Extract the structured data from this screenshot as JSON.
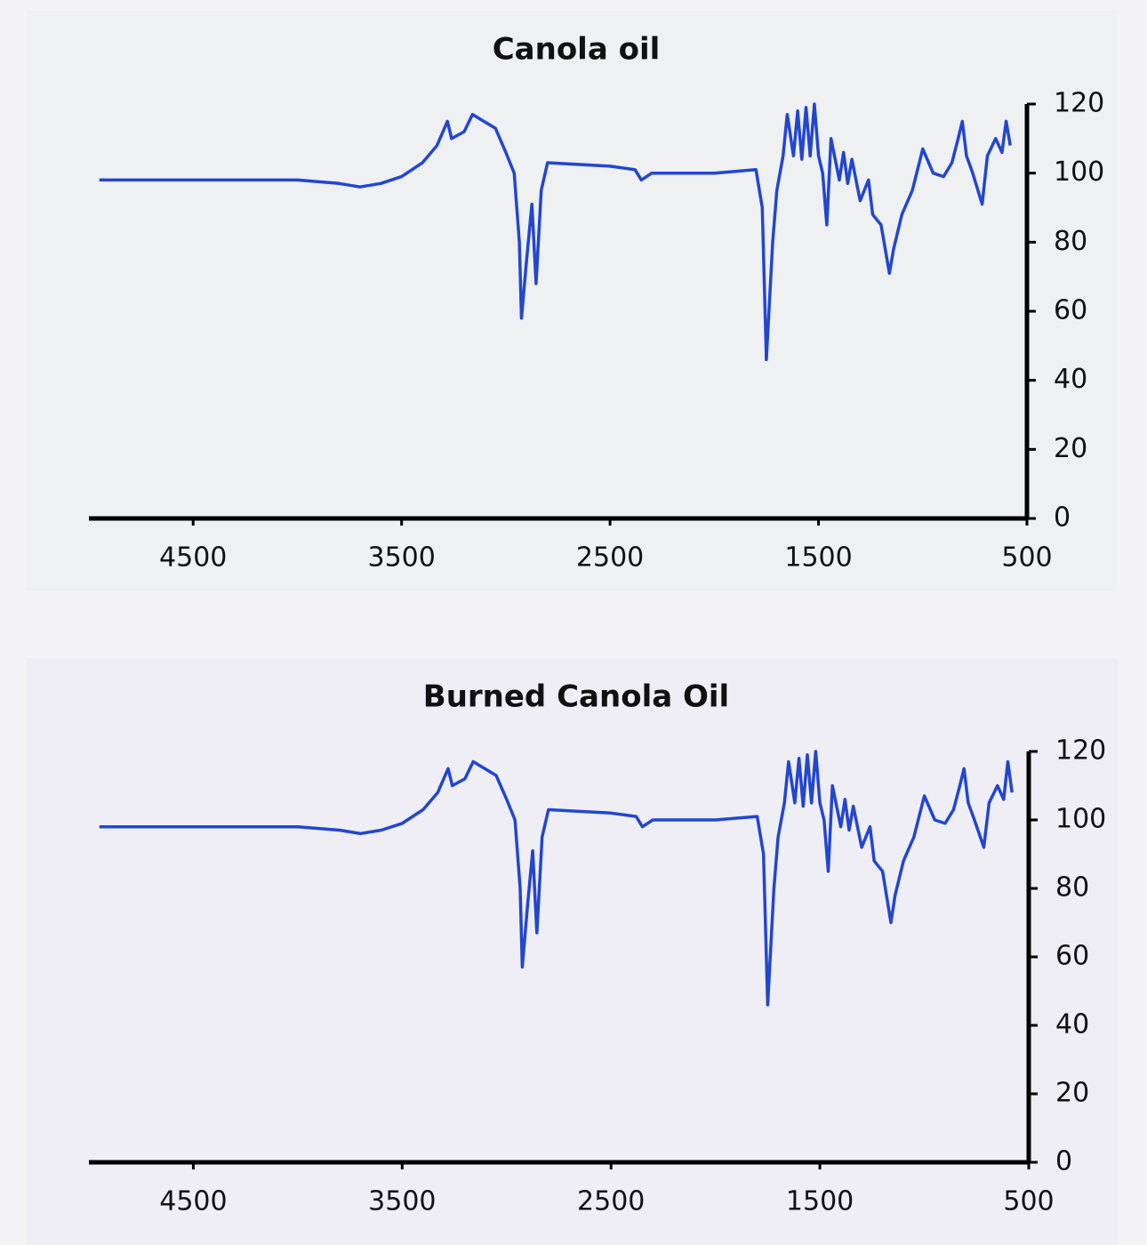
{
  "chart_data": [
    {
      "type": "line",
      "title": "Canola oil",
      "x": [
        4950,
        4500,
        4000,
        3800,
        3700,
        3600,
        3500,
        3400,
        3330,
        3280,
        3260,
        3200,
        3160,
        3050,
        3000,
        2960,
        2935,
        2925,
        2900,
        2875,
        2855,
        2830,
        2800,
        2500,
        2380,
        2350,
        2300,
        2000,
        1800,
        1770,
        1750,
        1720,
        1700,
        1670,
        1650,
        1620,
        1600,
        1580,
        1560,
        1540,
        1520,
        1500,
        1480,
        1460,
        1440,
        1400,
        1380,
        1360,
        1340,
        1300,
        1260,
        1240,
        1200,
        1160,
        1140,
        1100,
        1050,
        1000,
        950,
        900,
        860,
        830,
        810,
        790,
        760,
        715,
        690,
        650,
        620,
        600,
        580
      ],
      "series": [
        {
          "color": "#2346d0",
          "values": [
            98,
            98,
            98,
            97,
            96,
            97,
            99,
            103,
            108,
            115,
            110,
            112,
            117,
            113,
            106,
            100,
            80,
            58,
            75,
            91,
            68,
            95,
            103,
            102,
            101,
            98,
            100,
            100,
            101,
            90,
            46,
            80,
            95,
            105,
            117,
            105,
            118,
            104,
            119,
            105,
            120,
            105,
            100,
            85,
            110,
            98,
            106,
            97,
            104,
            92,
            98,
            88,
            85,
            71,
            78,
            88,
            95,
            107,
            100,
            99,
            103,
            110,
            115,
            105,
            100,
            91,
            105,
            110,
            106,
            115,
            108
          ]
        }
      ],
      "xlim": [
        5000,
        500
      ],
      "xticks": [
        4500,
        3500,
        2500,
        1500,
        500
      ],
      "ylim": [
        0,
        120
      ],
      "yticks": [
        0,
        20,
        40,
        60,
        80,
        100,
        120
      ]
    },
    {
      "type": "line",
      "title": "Burned Canola Oil",
      "x": [
        4950,
        4500,
        4000,
        3800,
        3700,
        3600,
        3500,
        3400,
        3330,
        3280,
        3260,
        3200,
        3160,
        3050,
        3000,
        2960,
        2935,
        2925,
        2900,
        2875,
        2855,
        2830,
        2800,
        2500,
        2380,
        2350,
        2300,
        2000,
        1800,
        1770,
        1750,
        1720,
        1700,
        1670,
        1650,
        1620,
        1600,
        1580,
        1560,
        1540,
        1520,
        1500,
        1480,
        1460,
        1440,
        1400,
        1380,
        1360,
        1340,
        1300,
        1260,
        1240,
        1200,
        1160,
        1140,
        1100,
        1050,
        1000,
        950,
        900,
        860,
        830,
        810,
        790,
        760,
        715,
        690,
        650,
        620,
        600,
        580
      ],
      "series": [
        {
          "color": "#2346d0",
          "values": [
            98,
            98,
            98,
            97,
            96,
            97,
            99,
            103,
            108,
            115,
            110,
            112,
            117,
            113,
            106,
            100,
            80,
            57,
            75,
            91,
            67,
            95,
            103,
            102,
            101,
            98,
            100,
            100,
            101,
            90,
            46,
            80,
            95,
            105,
            117,
            105,
            118,
            104,
            119,
            105,
            120,
            105,
            100,
            85,
            110,
            98,
            106,
            97,
            104,
            92,
            98,
            88,
            85,
            70,
            78,
            88,
            95,
            107,
            100,
            99,
            103,
            110,
            115,
            105,
            100,
            92,
            105,
            110,
            106,
            117,
            108
          ]
        }
      ],
      "xlim": [
        5000,
        500
      ],
      "xticks": [
        4500,
        3500,
        2500,
        1500,
        500
      ],
      "ylim": [
        0,
        120
      ],
      "yticks": [
        0,
        20,
        40,
        60,
        80,
        100,
        120
      ]
    }
  ]
}
